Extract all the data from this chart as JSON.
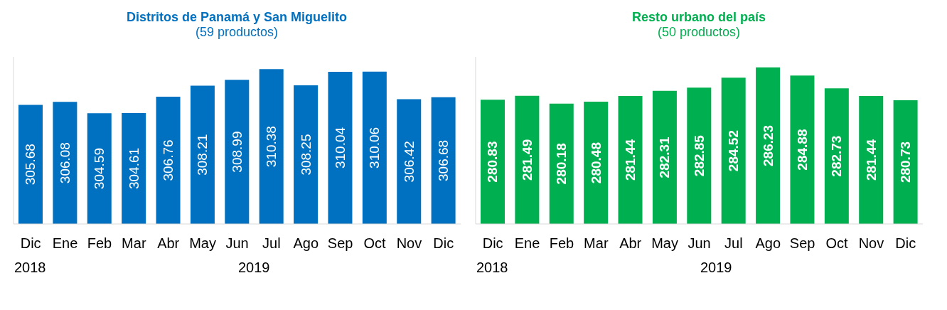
{
  "chart_data": [
    {
      "type": "bar",
      "title": "Distritos de Panamá y San Miguelito",
      "subtitle": "(59 productos)",
      "categories": [
        "Dic",
        "Ene",
        "Feb",
        "Mar",
        "Abr",
        "May",
        "Jun",
        "Jul",
        "Ago",
        "Sep",
        "Oct",
        "Nov",
        "Dic"
      ],
      "values": [
        305.68,
        306.08,
        304.59,
        304.61,
        306.76,
        308.21,
        308.99,
        310.38,
        308.25,
        310.04,
        310.06,
        306.42,
        306.68
      ],
      "color": "#0070c0",
      "ylim": [
        290,
        312
      ],
      "data_labels": true,
      "tick_labels": "x",
      "legend": false,
      "grid": false,
      "annotations": [
        "2018",
        "2019"
      ]
    },
    {
      "type": "bar",
      "title": "Resto urbano del país",
      "subtitle": "(50 productos)",
      "categories": [
        "Dic",
        "Ene",
        "Feb",
        "Mar",
        "Abr",
        "May",
        "Jun",
        "Jul",
        "Ago",
        "Sep",
        "Oct",
        "Nov",
        "Dic"
      ],
      "values": [
        280.83,
        281.49,
        280.18,
        280.48,
        281.44,
        282.31,
        282.85,
        284.52,
        286.23,
        284.88,
        282.73,
        281.44,
        280.73
      ],
      "color": "#00b050",
      "ylim": [
        260,
        288
      ],
      "data_labels": true,
      "tick_labels": "x",
      "legend": false,
      "grid": false,
      "annotations": [
        "2018",
        "2019"
      ]
    }
  ]
}
